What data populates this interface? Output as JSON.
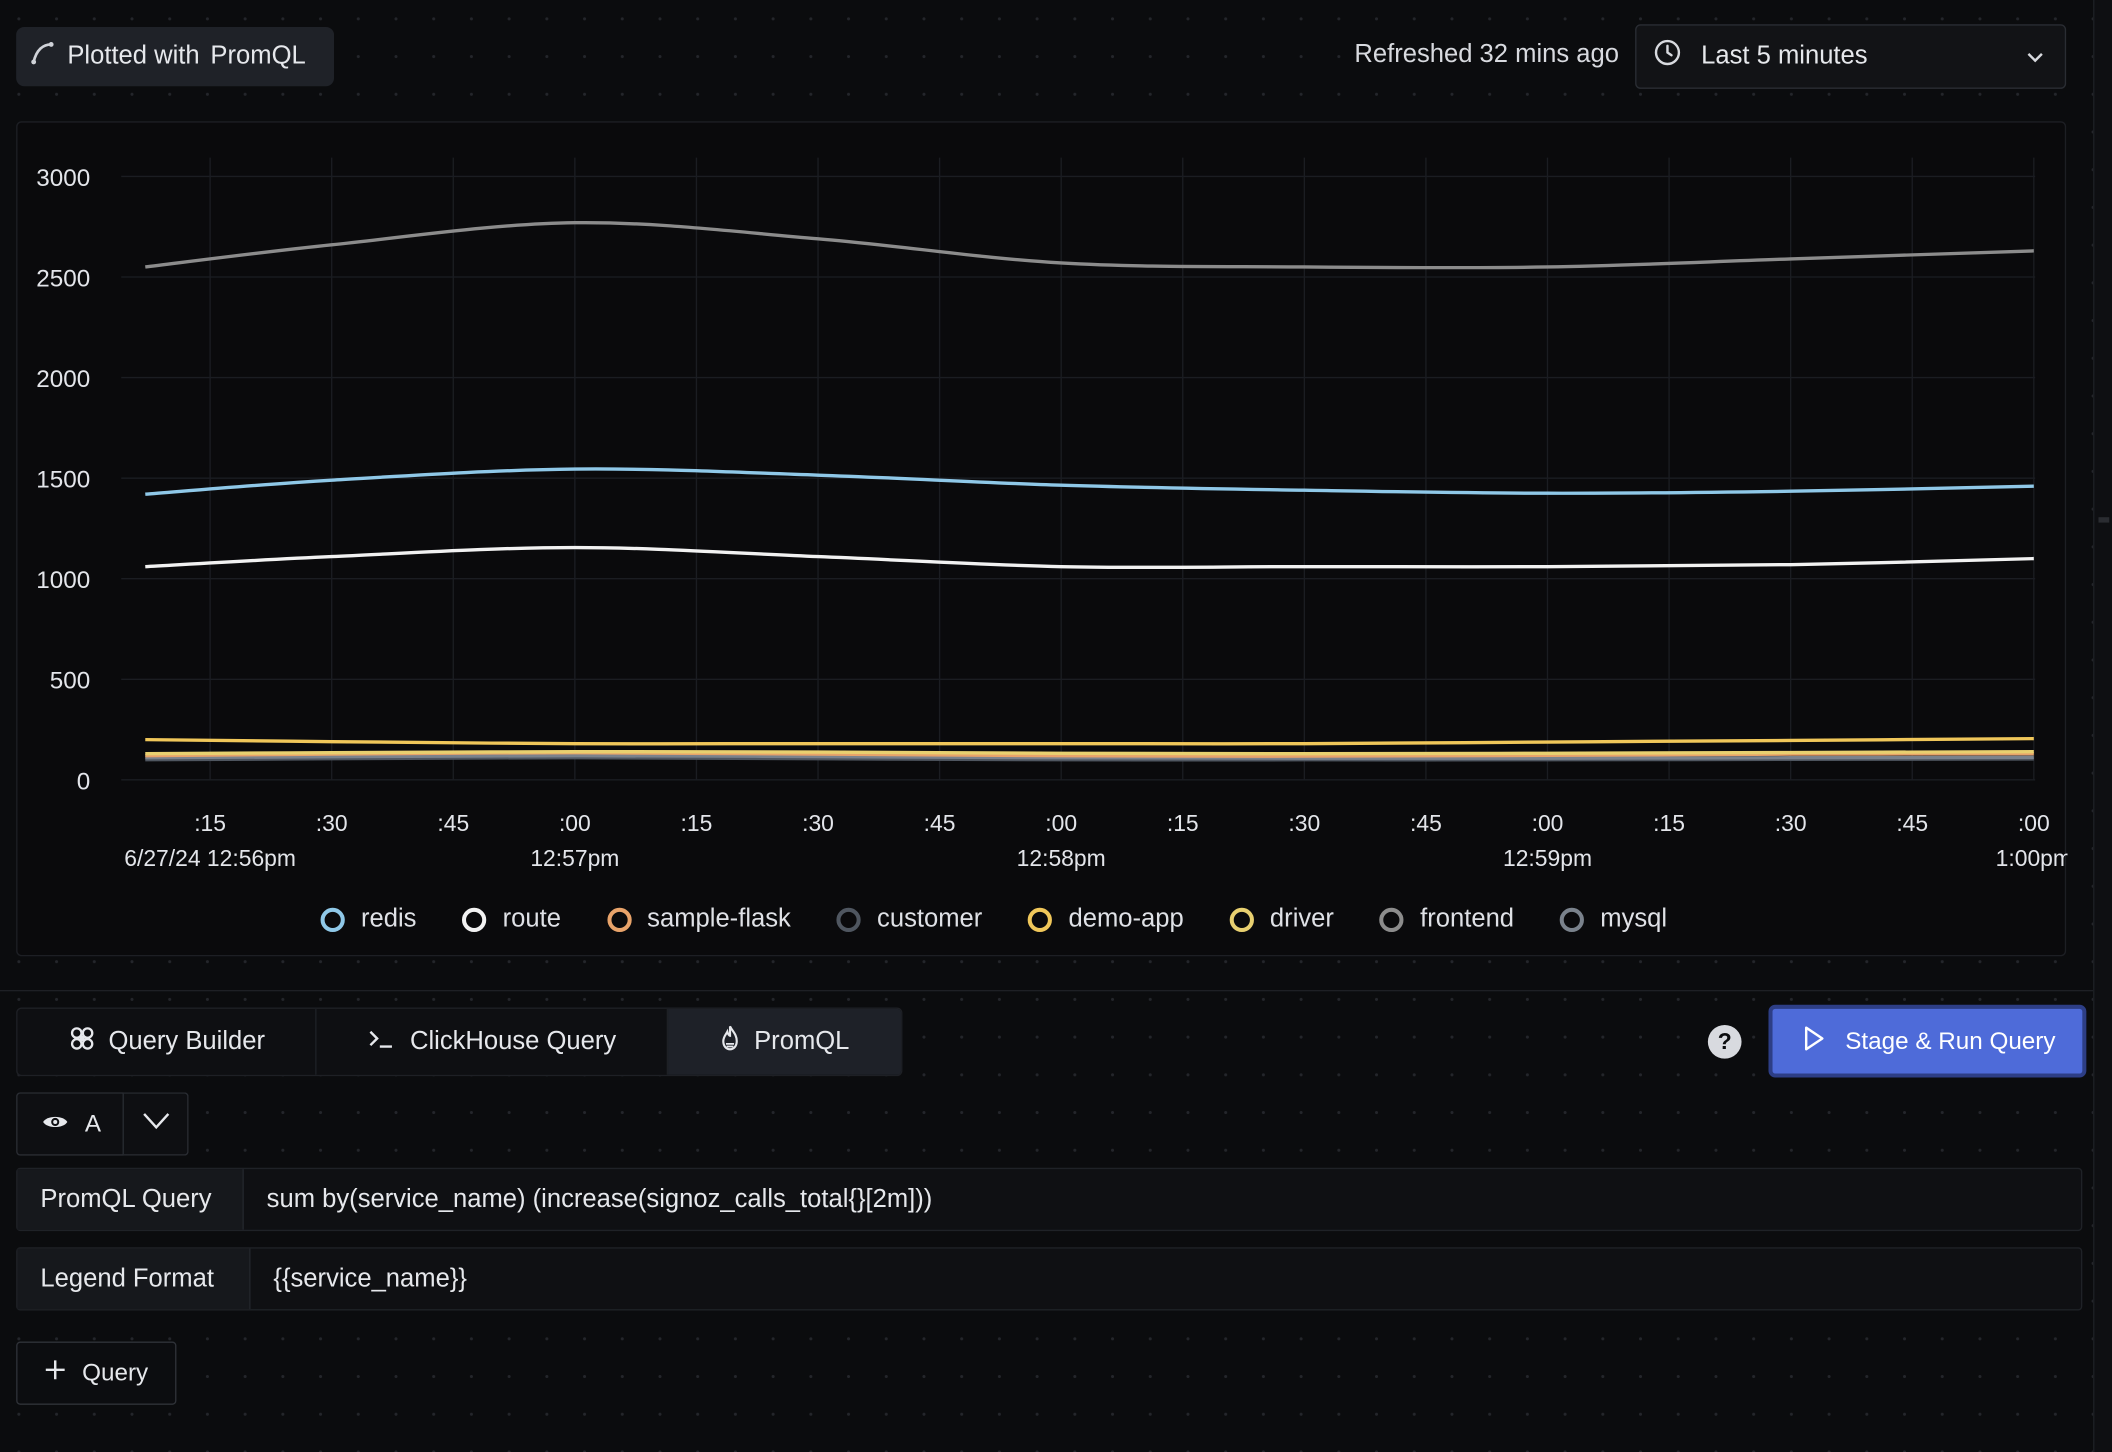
{
  "header": {
    "plotted_label": "Plotted with",
    "plotted_lang": "PromQL",
    "refreshed": "Refreshed 32 mins ago",
    "time_range": "Last 5 minutes"
  },
  "chart_data": {
    "type": "line",
    "title": "",
    "xlabel": "",
    "ylabel": "",
    "ylim": [
      0,
      3000
    ],
    "y_ticks": [
      "3000",
      "2500",
      "2000",
      "1500",
      "1000",
      "500",
      "0"
    ],
    "x_ticks": [
      {
        "minor": ":15",
        "major": "6/27/24 12:56pm"
      },
      {
        "minor": ":30",
        "major": ""
      },
      {
        "minor": ":45",
        "major": ""
      },
      {
        "minor": ":00",
        "major": "12:57pm"
      },
      {
        "minor": ":15",
        "major": ""
      },
      {
        "minor": ":30",
        "major": ""
      },
      {
        "minor": ":45",
        "major": ""
      },
      {
        "minor": ":00",
        "major": "12:58pm"
      },
      {
        "minor": ":15",
        "major": ""
      },
      {
        "minor": ":30",
        "major": ""
      },
      {
        "minor": ":45",
        "major": ""
      },
      {
        "minor": ":00",
        "major": "12:59pm"
      },
      {
        "minor": ":15",
        "major": ""
      },
      {
        "minor": ":30",
        "major": ""
      },
      {
        "minor": ":45",
        "major": ""
      },
      {
        "minor": ":00",
        "major": "1:00pm"
      }
    ],
    "x": [
      "12:56:07",
      "12:56:30",
      "12:57:00",
      "12:57:30",
      "12:58:00",
      "12:58:30",
      "12:59:00",
      "12:59:30",
      "13:00:00"
    ],
    "grid": true,
    "legend_position": "bottom",
    "series": [
      {
        "name": "redis",
        "color": "#8fc8e8",
        "values": [
          1420,
          1490,
          1545,
          1515,
          1465,
          1440,
          1425,
          1435,
          1460
        ]
      },
      {
        "name": "route",
        "color": "#f2f2f2",
        "values": [
          1060,
          1110,
          1155,
          1110,
          1060,
          1060,
          1060,
          1070,
          1100
        ]
      },
      {
        "name": "sample-flask",
        "color": "#e8a36a",
        "values": [
          120,
          128,
          135,
          128,
          120,
          118,
          122,
          128,
          130
        ]
      },
      {
        "name": "customer",
        "color": "#4f5660",
        "values": [
          100,
          105,
          110,
          105,
          100,
          100,
          100,
          102,
          104
        ]
      },
      {
        "name": "demo-app",
        "color": "#f0c75a",
        "values": [
          200,
          190,
          180,
          180,
          180,
          180,
          188,
          196,
          205
        ]
      },
      {
        "name": "driver",
        "color": "#e8d070",
        "values": [
          130,
          135,
          140,
          138,
          132,
          130,
          132,
          136,
          140
        ]
      },
      {
        "name": "frontend",
        "color": "#8c8c8c",
        "values": [
          2550,
          2660,
          2770,
          2690,
          2570,
          2550,
          2550,
          2590,
          2630
        ]
      },
      {
        "name": "mysql",
        "color": "#7a828c",
        "values": [
          110,
          115,
          120,
          116,
          110,
          108,
          108,
          110,
          112
        ]
      }
    ]
  },
  "tabs": {
    "query_builder": "Query Builder",
    "clickhouse": "ClickHouse Query",
    "promql": "PromQL"
  },
  "run_button": "Stage & Run Query",
  "help": "?",
  "query": {
    "name": "A",
    "promql_label": "PromQL Query",
    "promql_value": "sum by(service_name) (increase(signoz_calls_total{}[2m]))",
    "legend_label": "Legend Format",
    "legend_value": "{{service_name}}",
    "add_label": "Query"
  }
}
